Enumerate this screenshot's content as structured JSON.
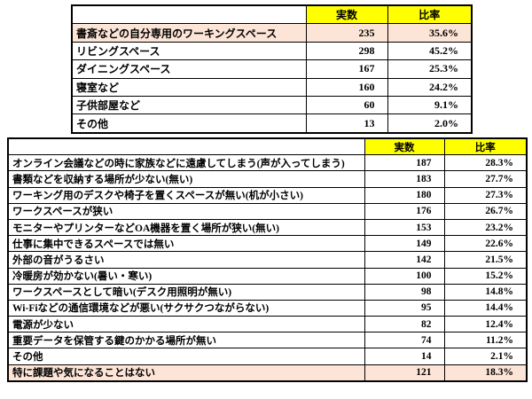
{
  "colors": {
    "header_bg": "#FFFF00",
    "highlight_bg": "#FCE4D6",
    "border": "#000000",
    "text": "#000000"
  },
  "chart_data": [
    {
      "type": "table",
      "title": "",
      "columns": [
        "",
        "実数",
        "比率"
      ],
      "legend_position": "none",
      "grid": true,
      "rows": [
        {
          "label": "書斎などの自分専用のワーキングスペース",
          "count": "235",
          "ratio": "35.6%",
          "highlight": true
        },
        {
          "label": "リビングスペース",
          "count": "298",
          "ratio": "45.2%",
          "highlight": false
        },
        {
          "label": "ダイニングスペース",
          "count": "167",
          "ratio": "25.3%",
          "highlight": false
        },
        {
          "label": "寝室など",
          "count": "160",
          "ratio": "24.2%",
          "highlight": false
        },
        {
          "label": "子供部屋など",
          "count": "60",
          "ratio": "9.1%",
          "highlight": false
        },
        {
          "label": "その他",
          "count": "13",
          "ratio": "2.0%",
          "highlight": false
        }
      ]
    },
    {
      "type": "table",
      "title": "",
      "columns": [
        "",
        "実数",
        "比率"
      ],
      "legend_position": "none",
      "grid": true,
      "rows": [
        {
          "label": "オンライン会議などの時に家族などに遠慮してしまう(声が入ってしまう)",
          "count": "187",
          "ratio": "28.3%",
          "highlight": false
        },
        {
          "label": "書類などを収納する場所が少ない(無い)",
          "count": "183",
          "ratio": "27.7%",
          "highlight": false
        },
        {
          "label": "ワーキング用のデスクや椅子を置くスペースが無い(机が小さい)",
          "count": "180",
          "ratio": "27.3%",
          "highlight": false
        },
        {
          "label": "ワークスペースが狭い",
          "count": "176",
          "ratio": "26.7%",
          "highlight": false
        },
        {
          "label": "モニターやプリンターなどOA機器を置く場所が狭い(無い)",
          "count": "153",
          "ratio": "23.2%",
          "highlight": false
        },
        {
          "label": "仕事に集中できるスペースでは無い",
          "count": "149",
          "ratio": "22.6%",
          "highlight": false
        },
        {
          "label": "外部の音がうるさい",
          "count": "142",
          "ratio": "21.5%",
          "highlight": false
        },
        {
          "label": "冷暖房が効かない(暑い・寒い)",
          "count": "100",
          "ratio": "15.2%",
          "highlight": false
        },
        {
          "label": "ワークスペースとして暗い(デスク用照明が無い)",
          "count": "98",
          "ratio": "14.8%",
          "highlight": false
        },
        {
          "label": "Wi-Fiなどの通信環境などが悪い(サクサクつながらない)",
          "count": "95",
          "ratio": "14.4%",
          "highlight": false
        },
        {
          "label": "電源が少ない",
          "count": "82",
          "ratio": "12.4%",
          "highlight": false
        },
        {
          "label": "重要データを保管する鍵のかかる場所が無い",
          "count": "74",
          "ratio": "11.2%",
          "highlight": false
        },
        {
          "label": "その他",
          "count": "14",
          "ratio": "2.1%",
          "highlight": false
        },
        {
          "label": "特に課題や気になることはない",
          "count": "121",
          "ratio": "18.3%",
          "highlight": true
        }
      ]
    }
  ]
}
